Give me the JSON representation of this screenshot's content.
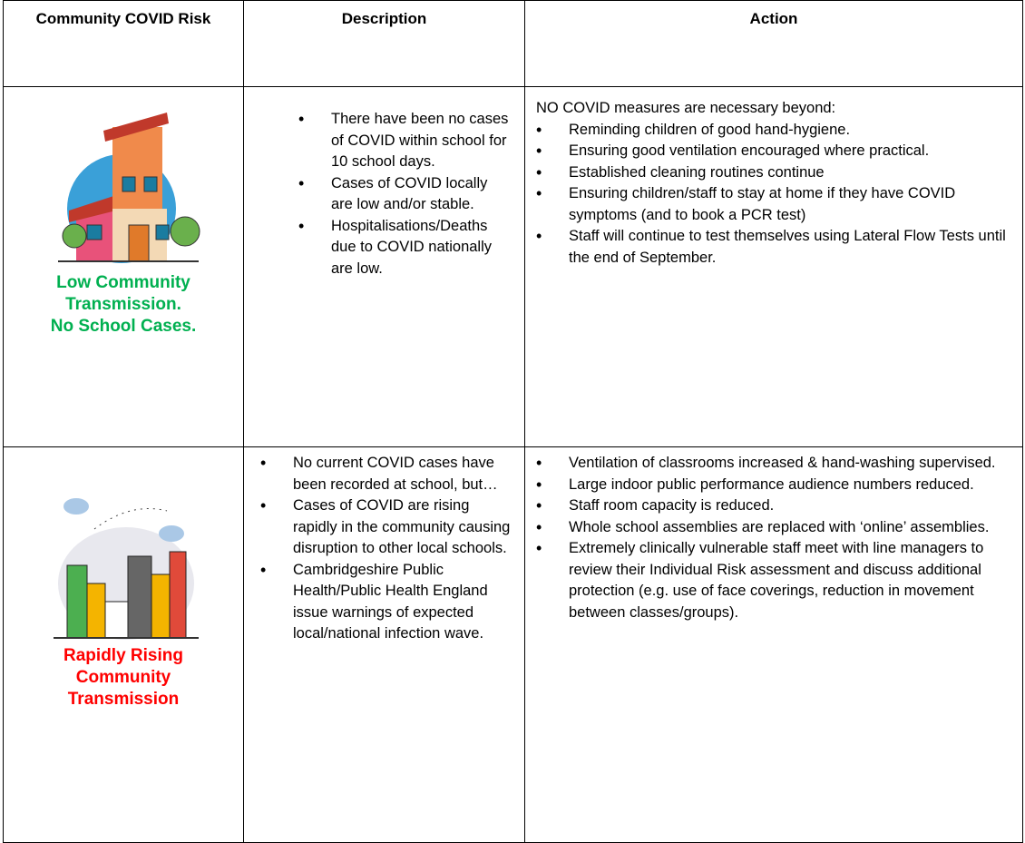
{
  "table": {
    "header": [
      "Community COVID Risk",
      "Description",
      "Action"
    ],
    "rows": [
      {
        "risk": [
          "Low Community",
          "Transmission.",
          "No School Cases."
        ],
        "risk_color": "#00b050",
        "description": [
          "There have been no cases of COVID within school for 10 school days.",
          "Cases of COVID locally are low and/or stable.",
          "Hospitalisations/Deaths due to COVID nationally are low."
        ],
        "action_intro": "NO COVID measures are necessary beyond:",
        "action": [
          "Reminding children of good hand-hygiene.",
          "Ensuring good ventilation encouraged where practical.",
          "Established cleaning routines continue",
          "Ensuring children/staff to stay at home if they have COVID symptoms (and to book a PCR test)",
          "Staff will continue to test themselves using Lateral Flow Tests until the end of September."
        ]
      },
      {
        "risk": [
          "Rapidly Rising",
          "Community",
          "Transmission"
        ],
        "risk_color": "#ff0000",
        "description": [
          "No current COVID cases have been recorded at school, but…",
          "Cases of COVID are rising rapidly in the community causing disruption to other local schools.",
          "Cambridgeshire Public Health/Public Health England issue warnings of expected local/national infection wave."
        ],
        "action": [
          "Ventilation of classrooms increased & hand-washing supervised.",
          "Large indoor public performance audience numbers reduced.",
          "Staff room capacity is reduced.",
          "Whole school assemblies are replaced with ‘online’ assemblies.",
          "Extremely clinically vulnerable staff meet with line managers to review their Individual Risk assessment and discuss additional protection (e.g. use of face coverings, reduction in movement between classes/groups)."
        ]
      }
    ]
  }
}
